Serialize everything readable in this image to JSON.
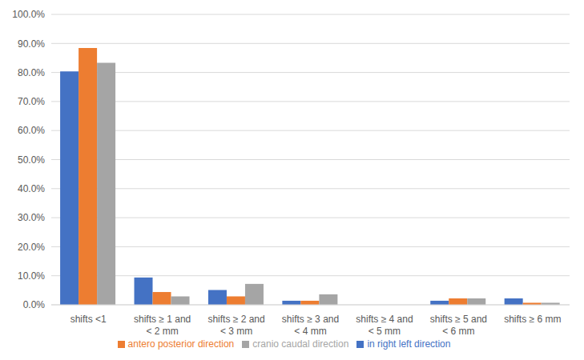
{
  "chart_data": {
    "type": "bar",
    "categories": [
      "shifts <1",
      "shifts ≥ 1 and < 2 mm",
      "shifts ≥ 2 and < 3 mm",
      "shifts ≥ 3 and < 4 mm",
      "shifts ≥ 4 and < 5 mm",
      "shifts ≥ 5 and < 6 mm",
      "shifts ≥ 6 mm"
    ],
    "series": [
      {
        "name": "in right left direction",
        "color": "#4472c4",
        "values": [
          80.4,
          9.4,
          5.1,
          1.4,
          0,
          1.4,
          2.2
        ]
      },
      {
        "name": "antero posterior direction",
        "color": "#ed7d31",
        "values": [
          88.4,
          4.4,
          2.9,
          1.4,
          0,
          2.2,
          0.7
        ]
      },
      {
        "name": "cranio caudal direction",
        "color": "#a5a5a5",
        "values": [
          83.3,
          2.9,
          7.2,
          3.6,
          0,
          2.2,
          0.7
        ]
      }
    ],
    "ylim": [
      0,
      100
    ],
    "yticks": [
      {
        "value": 0,
        "label": "0.0%"
      },
      {
        "value": 10,
        "label": "10.0%"
      },
      {
        "value": 20,
        "label": "20.0%"
      },
      {
        "value": 30,
        "label": "30.0%"
      },
      {
        "value": 40,
        "label": "40.0%"
      },
      {
        "value": 50,
        "label": "50.0%"
      },
      {
        "value": 60,
        "label": "60.0%"
      },
      {
        "value": 70,
        "label": "70.0%"
      },
      {
        "value": 80,
        "label": "80.0%"
      },
      {
        "value": 90,
        "label": "90.0%"
      },
      {
        "value": 100,
        "label": "100.0%"
      }
    ],
    "grid": true,
    "legend": "bottom"
  }
}
